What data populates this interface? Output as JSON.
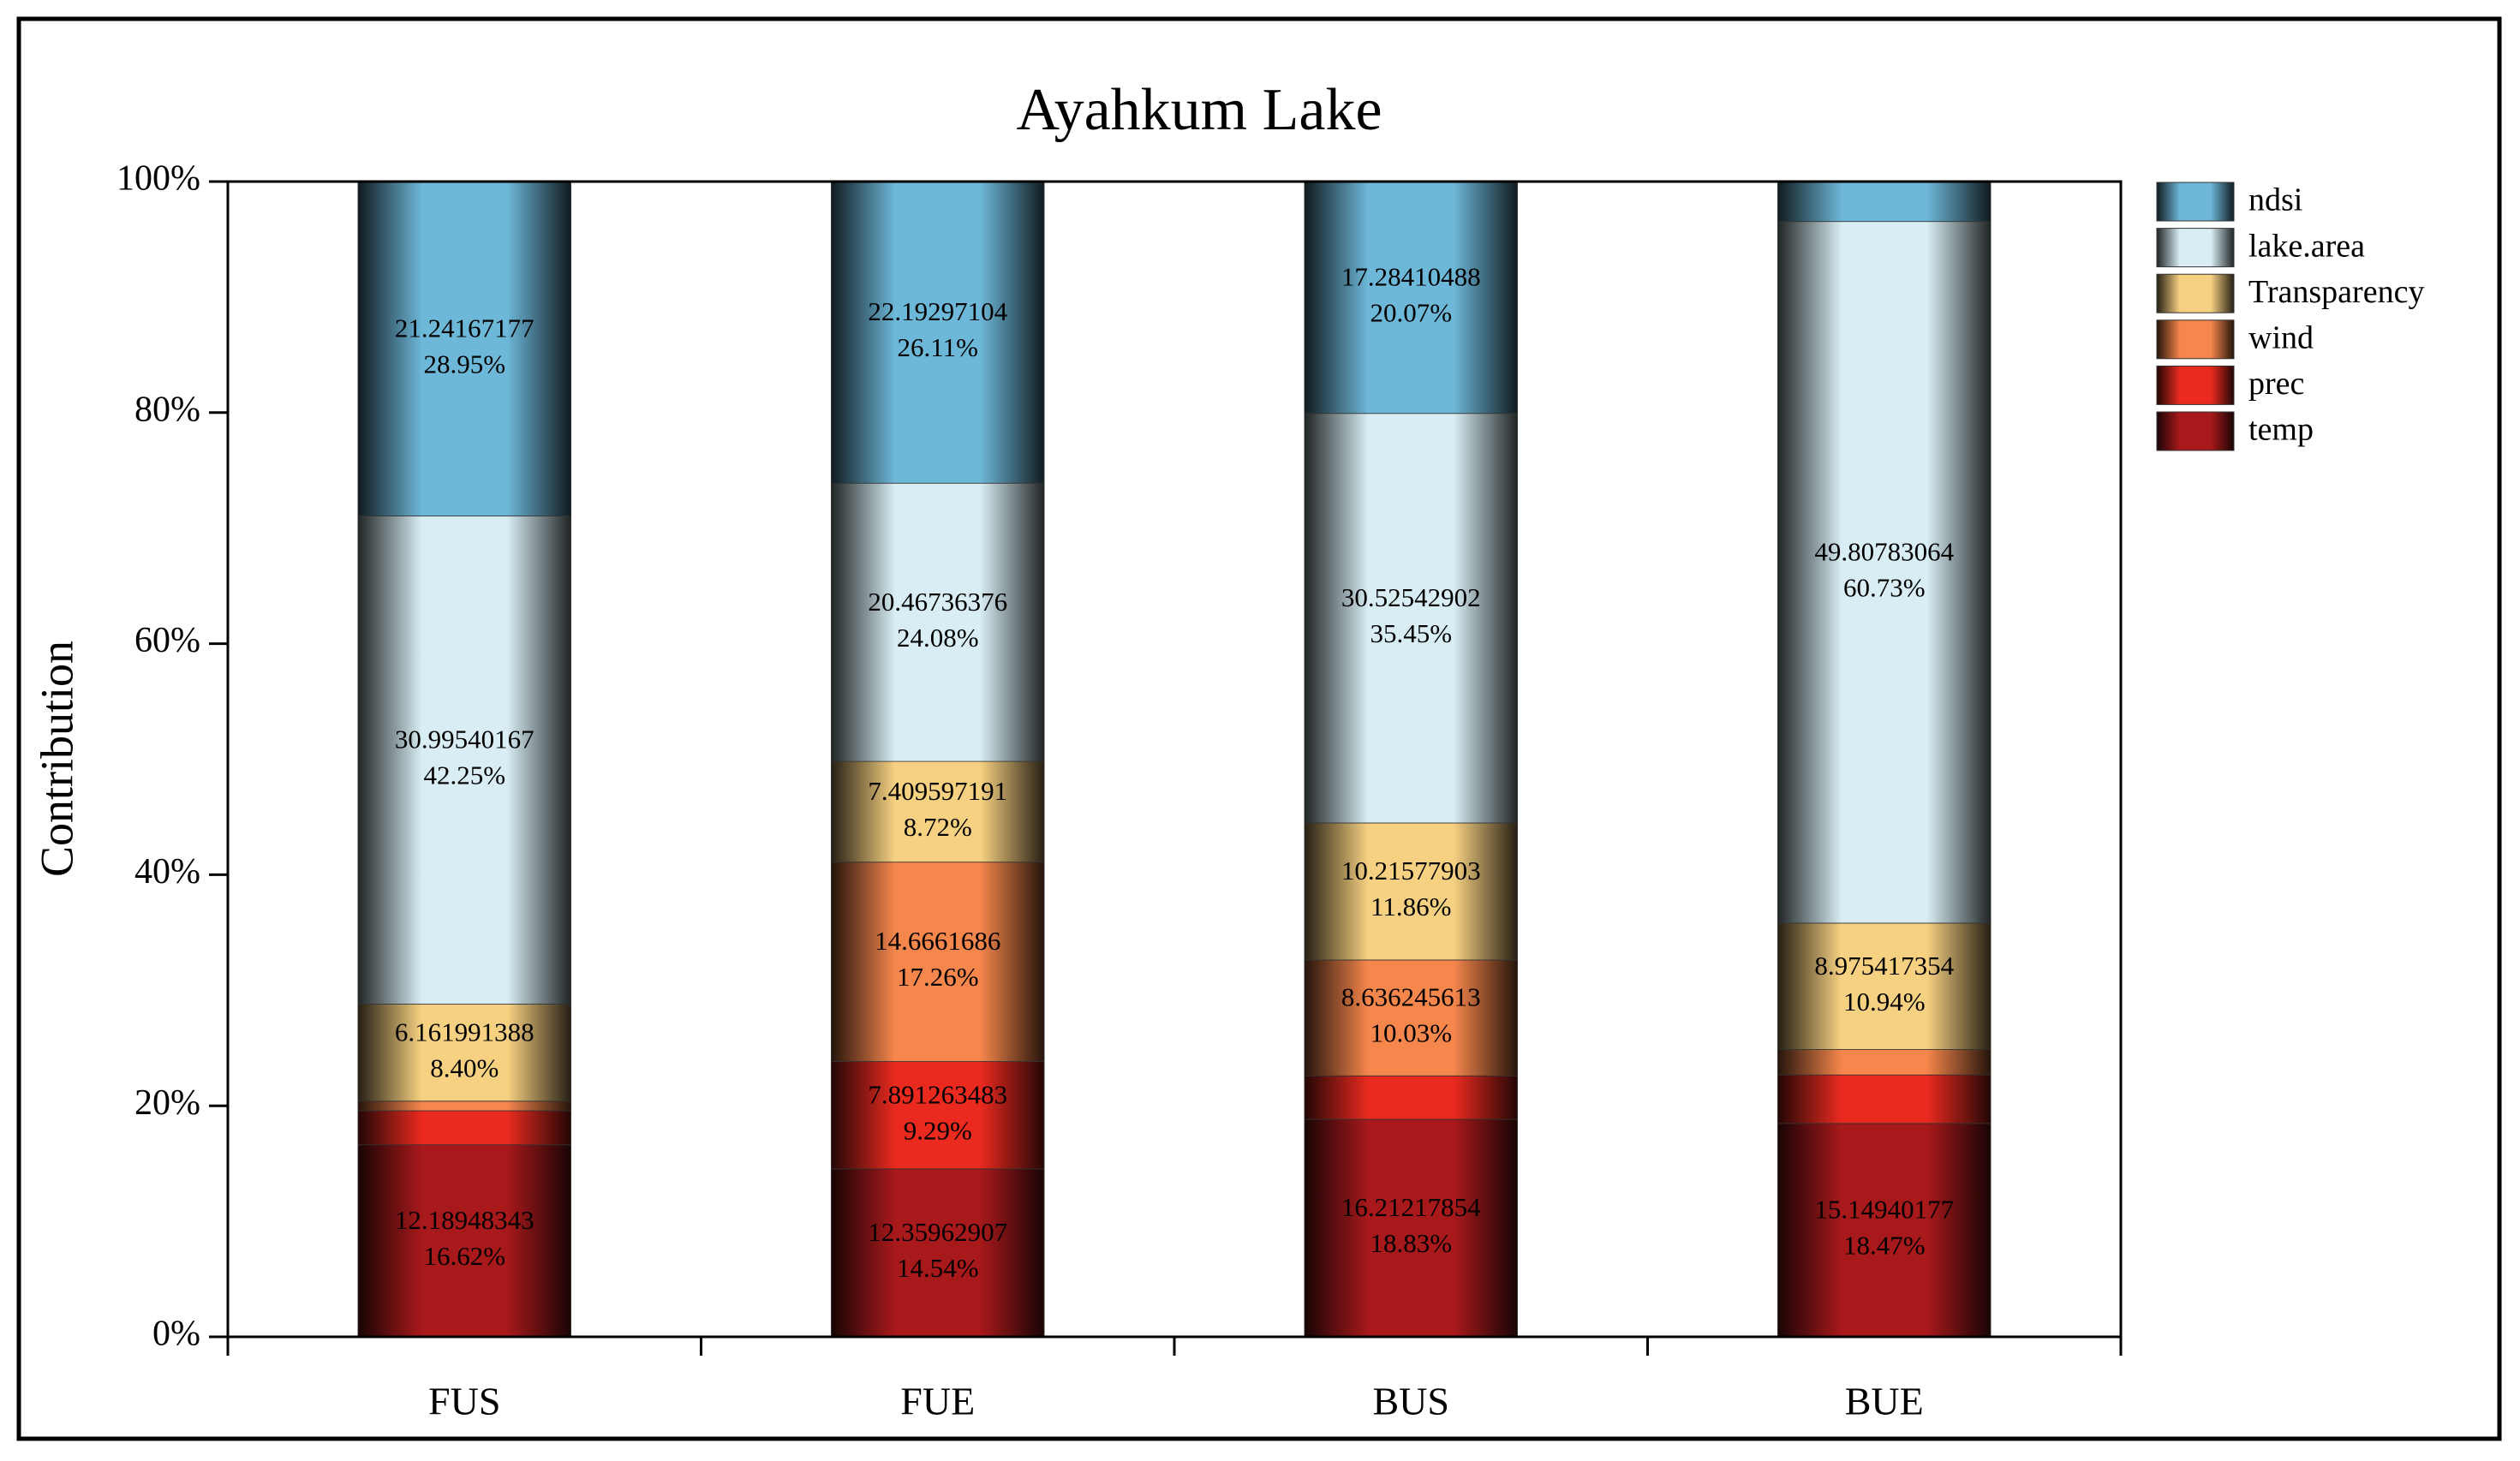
{
  "chart_data": {
    "type": "stacked_bar",
    "title": "Ayahkum Lake",
    "y_label": "Contribution",
    "categories": [
      "FUS",
      "FUE",
      "BUS",
      "BUE"
    ],
    "ylim": [
      0,
      100
    ],
    "yticks": [
      {
        "value": 0,
        "label": "0%"
      },
      {
        "value": 20,
        "label": "20%"
      },
      {
        "value": 40,
        "label": "40%"
      },
      {
        "value": 60,
        "label": "60%"
      },
      {
        "value": 80,
        "label": "80%"
      },
      {
        "value": 100,
        "label": "100%"
      }
    ],
    "legend": "right",
    "series": [
      {
        "name": "temp",
        "color": "#a8191b",
        "values": [
          16.62,
          14.54,
          18.83,
          18.47
        ],
        "raw_values": [
          12.18948343,
          12.35962907,
          16.21217854,
          15.14940177
        ],
        "value_labels": [
          "16.62%",
          "14.54%",
          "18.83%",
          "18.47%"
        ]
      },
      {
        "name": "prec",
        "color": "#ea2a1f",
        "values": [
          2.95,
          9.29,
          3.76,
          4.2
        ],
        "raw_values": [
          null,
          7.891263483,
          null,
          null
        ],
        "value_labels": [
          null,
          "9.29%",
          null,
          null
        ]
      },
      {
        "name": "wind",
        "color": "#f5864c",
        "values": [
          0.83,
          17.26,
          10.03,
          2.2
        ],
        "raw_values": [
          null,
          14.6661686,
          8.636245613,
          null
        ],
        "value_labels": [
          null,
          "17.26%",
          "10.03%",
          null
        ]
      },
      {
        "name": "Transparency",
        "color": "#f7d182",
        "values": [
          8.4,
          8.72,
          11.86,
          10.94
        ],
        "raw_values": [
          6.161991388,
          7.409597191,
          10.21577903,
          8.975417354
        ],
        "value_labels": [
          "8.40%",
          "8.72%",
          "11.86%",
          "10.94%"
        ]
      },
      {
        "name": "lake.area",
        "color": "#d8eef4",
        "values": [
          42.25,
          24.08,
          35.45,
          60.73
        ],
        "raw_values": [
          30.99540167,
          20.46736376,
          30.52542902,
          49.80783064
        ],
        "value_labels": [
          "42.25%",
          "24.08%",
          "35.45%",
          "60.73%"
        ]
      },
      {
        "name": "ndsi",
        "color": "#6db7d8",
        "values": [
          28.95,
          26.11,
          20.07,
          3.46
        ],
        "raw_values": [
          21.24167177,
          22.19297104,
          17.28410488,
          null
        ],
        "value_labels": [
          "28.95%",
          "26.11%",
          "20.07%",
          null
        ]
      }
    ]
  }
}
